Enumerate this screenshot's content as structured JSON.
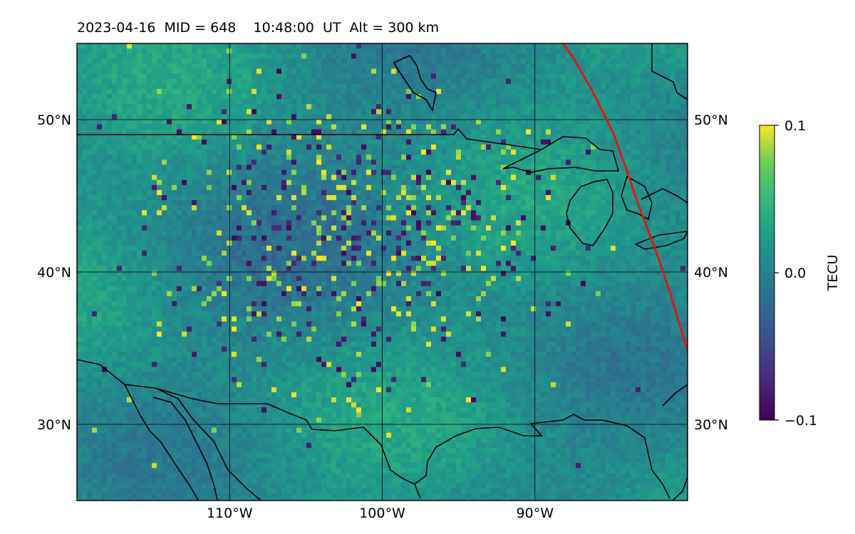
{
  "title": "2023-04-16  MID = 648    10:48:00  UT  Alt = 300 km",
  "map": {
    "lon_range": [
      -120,
      -80
    ],
    "lat_range": [
      25,
      55
    ],
    "lon_ticks": [
      -110,
      -100,
      -90
    ],
    "lon_tick_labels": [
      "110°W",
      "100°W",
      "90°W"
    ],
    "lat_ticks": [
      30,
      40,
      50
    ],
    "lat_tick_labels": [
      "30°N",
      "40°N",
      "50°N"
    ],
    "gridlines": true,
    "coastline_color": "#000000",
    "terminator_color": "#e8120c"
  },
  "colorbar": {
    "label": "TECU",
    "colormap": "viridis",
    "vmin": -0.1,
    "vmax": 0.1,
    "ticks": [
      0.1,
      0.0,
      -0.1
    ],
    "tick_labels": [
      "0.1",
      "0.0",
      "−0.1"
    ]
  }
}
